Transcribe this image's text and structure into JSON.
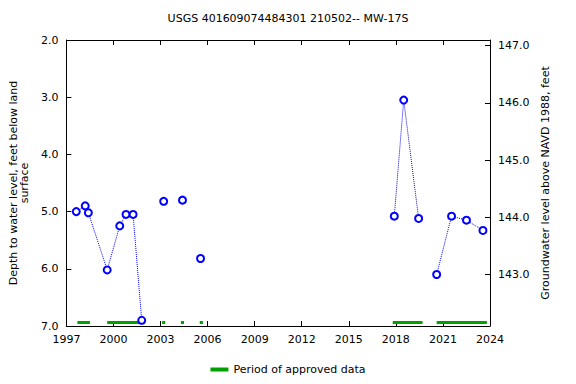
{
  "chart_data": {
    "type": "scatter",
    "title": "USGS 401609074484301 210502-- MW-17S",
    "x_label": "",
    "y_label": "Depth to water level, feet below land\nsurface",
    "y2_label": "Groundwater level above NAVD 1988, feet",
    "xlim": [
      1997,
      2024
    ],
    "xticks": [
      1997,
      2000,
      2003,
      2006,
      2009,
      2012,
      2015,
      2018,
      2021,
      2024
    ],
    "ylim": [
      2.0,
      7.0
    ],
    "yticks": [
      {
        "value": 2,
        "label": "2.0"
      },
      {
        "value": 3,
        "label": "3.0"
      },
      {
        "value": 4,
        "label": "4.0"
      },
      {
        "value": 5,
        "label": "5.0"
      },
      {
        "value": 6,
        "label": "6.0"
      },
      {
        "value": 7,
        "label": "7.0"
      }
    ],
    "y2lim": [
      142.1,
      147.1
    ],
    "y2ticks": [
      {
        "value": 143,
        "label": "143.0"
      },
      {
        "value": 144,
        "label": "144.0"
      },
      {
        "value": 145,
        "label": "145.0"
      },
      {
        "value": 146,
        "label": "146.0"
      },
      {
        "value": 147,
        "label": "147.0"
      }
    ],
    "grid": false,
    "legend": "bottom",
    "series": [
      {
        "color": "#0000ff",
        "marker": "circle-open",
        "line_style": "dotted",
        "x": [
          1997.63,
          1998.2,
          1998.4,
          1999.6,
          2000.4,
          2000.8,
          2001.25,
          2001.8
        ],
        "values": [
          5.0,
          4.9,
          5.02,
          6.02,
          5.25,
          5.05,
          5.05,
          6.9
        ]
      },
      {
        "color": "#0000ff",
        "marker": "circle-open",
        "line_style": "dotted",
        "x": [
          2003.2
        ],
        "values": [
          4.82
        ]
      },
      {
        "color": "#0000ff",
        "marker": "circle-open",
        "line_style": "dotted",
        "x": [
          2004.4
        ],
        "values": [
          4.8
        ]
      },
      {
        "color": "#0000ff",
        "marker": "circle-open",
        "line_style": "dotted",
        "x": [
          2005.55
        ],
        "values": [
          5.82
        ]
      },
      {
        "color": "#0000ff",
        "marker": "circle-open",
        "line_style": "dotted",
        "x": [
          2017.9,
          2018.5,
          2019.45
        ],
        "values": [
          5.08,
          3.05,
          5.12
        ]
      },
      {
        "color": "#0000ff",
        "marker": "circle-open",
        "line_style": "dotted",
        "x": [
          2020.6,
          2021.55,
          2022.5,
          2023.55
        ],
        "values": [
          6.1,
          5.08,
          5.15,
          5.33
        ]
      }
    ],
    "approved_periods": {
      "name": "Period of approved data",
      "color": "#00a000",
      "periods": [
        [
          1997.7,
          1998.5
        ],
        [
          1999.6,
          2002.0
        ],
        [
          2003.1,
          2003.3
        ],
        [
          2004.3,
          2004.5
        ],
        [
          2005.5,
          2005.7
        ],
        [
          2017.8,
          2019.7
        ],
        [
          2020.6,
          2023.8
        ]
      ]
    }
  }
}
